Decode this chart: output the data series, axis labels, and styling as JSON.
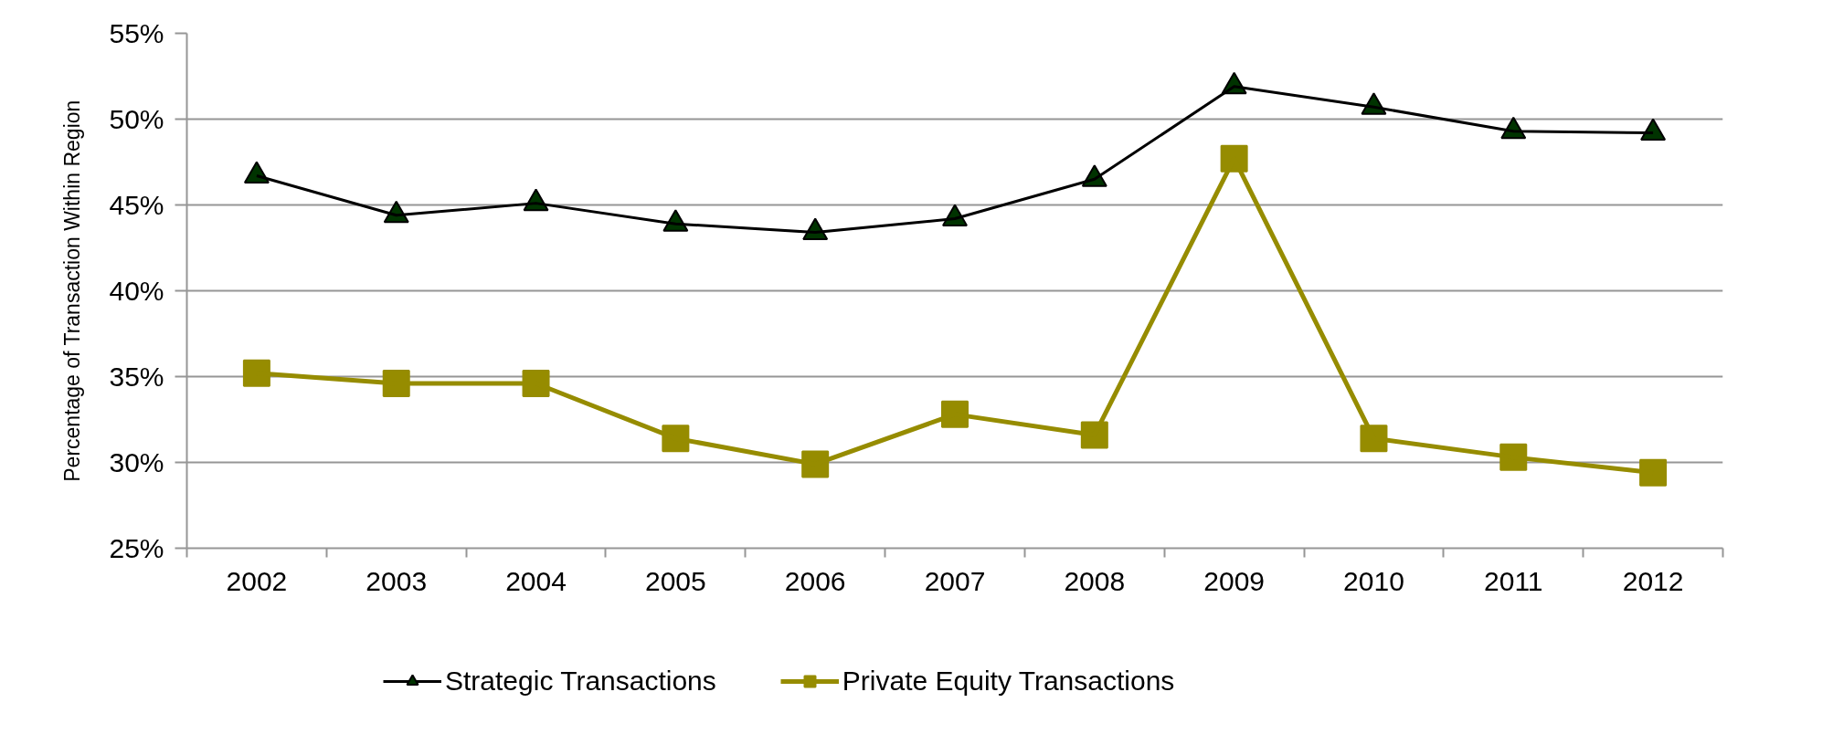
{
  "chart_data": {
    "type": "line",
    "ylabel": "Percentage of Transaction Within Region",
    "categories": [
      "2002",
      "2003",
      "2004",
      "2005",
      "2006",
      "2007",
      "2008",
      "2009",
      "2010",
      "2011",
      "2012"
    ],
    "series": [
      {
        "name": "Strategic Transactions",
        "color": "#000000",
        "colors": [
          "#003300",
          "#003300",
          "#003300",
          "#003300",
          "#003300",
          "#003300",
          "#003300",
          "#003300",
          "#003300",
          "#003300",
          "#003300"
        ],
        "marker": "triangle",
        "values": [
          46.7,
          44.4,
          45.1,
          43.9,
          43.4,
          44.2,
          46.5,
          51.9,
          50.7,
          49.3,
          49.2
        ]
      },
      {
        "name": "Private Equity Transactions",
        "color": "#968c00",
        "marker": "square",
        "values": [
          35.2,
          34.6,
          34.6,
          31.4,
          29.9,
          32.8,
          31.6,
          47.7,
          31.4,
          30.3,
          29.4
        ]
      }
    ],
    "ylim": [
      25,
      55
    ],
    "yticks": [
      {
        "value": 25,
        "label": "25%"
      },
      {
        "value": 30,
        "label": "30%"
      },
      {
        "value": 35,
        "label": "35%"
      },
      {
        "value": 40,
        "label": "40%"
      },
      {
        "value": 45,
        "label": "45%"
      },
      {
        "value": 50,
        "label": "50%"
      },
      {
        "value": 55,
        "label": "55%"
      }
    ],
    "grid": "y",
    "legend": "bottom"
  }
}
